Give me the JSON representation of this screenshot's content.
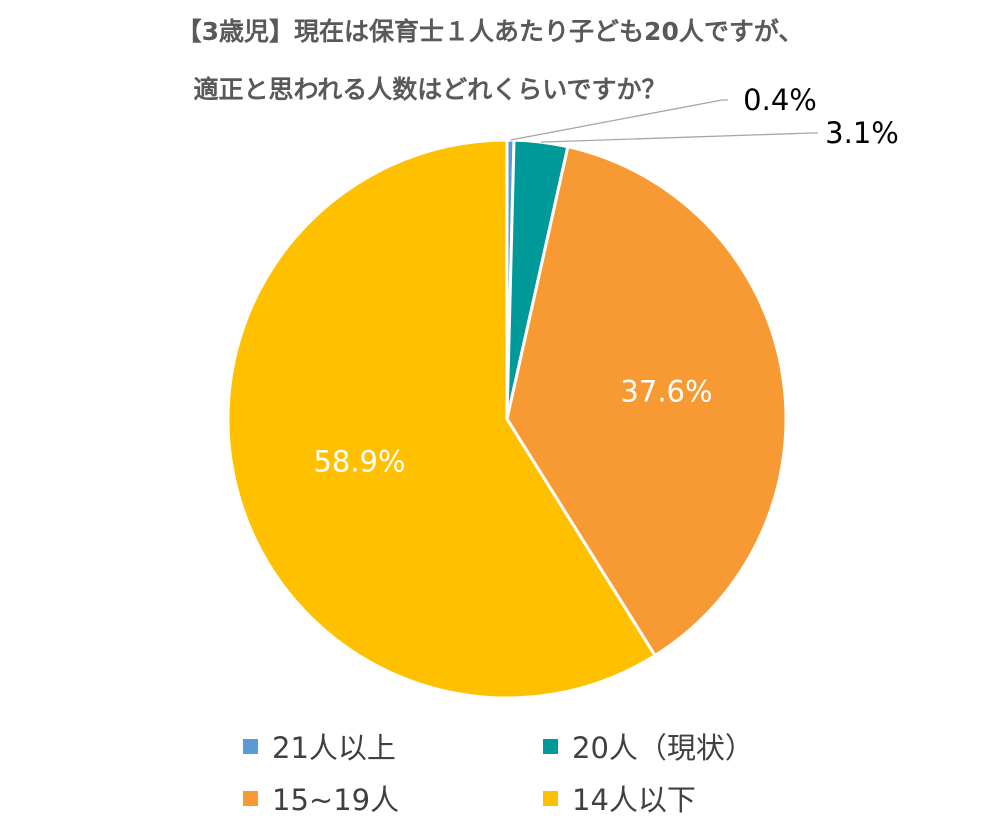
{
  "chart_data": {
    "type": "pie",
    "title_lines": [
      "【3歳児】現在は保育士１人あたり子ども20人ですが、",
      "適正と思われる人数はどれくらいですか？"
    ],
    "categories": [
      "21人以上",
      "20人（現状）",
      "15~19人",
      "14人以下"
    ],
    "values": [
      0.4,
      3.1,
      37.6,
      58.9
    ],
    "value_labels": [
      "0.4%",
      "3.1%",
      "37.6%",
      "58.9%"
    ],
    "colors": [
      "#5B9BD5",
      "#009999",
      "#F79A34",
      "#FFC000"
    ],
    "start_angle_deg": 0,
    "direction": "clockwise",
    "legend_position": "bottom"
  }
}
